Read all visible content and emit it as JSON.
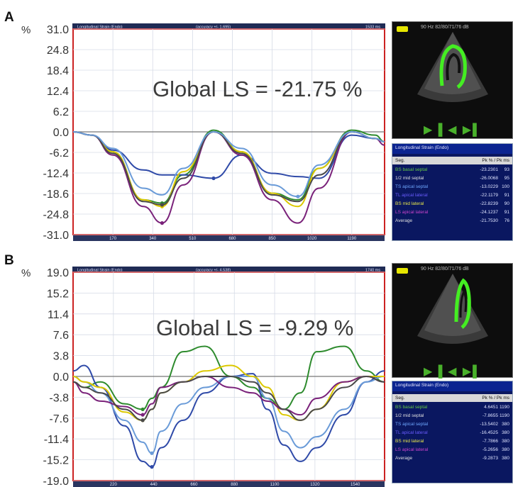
{
  "panels": [
    {
      "letter": "A",
      "title": "Global LS = -21.75 %",
      "header": {
        "left": "Longitudinal Strain (Endo)",
        "middle": "(accuracy +/- 1.695)",
        "right": "1533 ms"
      },
      "echo_text": "90 Hz   82/80/71/76 dB",
      "echo_controls": "▶ ▌◀ ▶▌",
      "table": {
        "title": "Longitudinal Strain (Endo)",
        "header": [
          "Seg.",
          "Pk % / Pk ms"
        ],
        "rows": [
          {
            "label": "BS basal septal",
            "value": "-23.2301",
            "extra": "93",
            "color": "#66cc44"
          },
          {
            "label": "1/2 mid septal",
            "value": "-26.0068",
            "extra": "95",
            "color": "#e0e0e0"
          },
          {
            "label": "TS apical septal",
            "value": "-13.0229",
            "extra": "100",
            "color": "#6fa8ff"
          },
          {
            "label": "TL apical lateral",
            "value": "-22.1179",
            "extra": "91",
            "color": "#6a5cff"
          },
          {
            "label": "BS mid lateral",
            "value": "-22.8239",
            "extra": "90",
            "color": "#e8e84a"
          },
          {
            "label": "LS apical lateral",
            "value": "-24.1237",
            "extra": "91",
            "color": "#cc44cc"
          },
          {
            "label": "Average",
            "value": "-21.7530",
            "extra": "76",
            "color": "#e0e0e0"
          }
        ]
      },
      "chart_data": {
        "type": "line",
        "title": "Global LS = -21.75 %",
        "ylabel": "%",
        "ylim": [
          -31.0,
          31.0
        ],
        "yticks": [
          "31.0",
          "24.8",
          "18.4",
          "12.4",
          "6.2",
          "0.0",
          "-6.2",
          "-12.4",
          "-18.6",
          "-24.8",
          "-31.0"
        ],
        "xlim": [
          0,
          1330
        ],
        "xtick_values": [
          170,
          340,
          510,
          680,
          850,
          1020,
          1190
        ],
        "xtick_labels": [
          "170",
          "340",
          "510",
          "680",
          "850",
          "1020",
          "1190"
        ],
        "x": [
          0,
          80,
          170,
          300,
          380,
          470,
          600,
          720,
          850,
          960,
          1050,
          1190,
          1290,
          1330
        ],
        "series": [
          {
            "color": "#2e8b2e",
            "values": [
              0,
              -1,
              -6,
              -20.5,
              -21.5,
              -13,
              0.5,
              -6,
              -18.5,
              -20.5,
              -11,
              0.5,
              -1,
              -3
            ]
          },
          {
            "color": "#2f4aa8",
            "values": [
              0,
              -1,
              -5.5,
              -11.5,
              -13,
              -13,
              -14,
              -7,
              -12.5,
              -13.5,
              -14,
              -1,
              -2,
              -3
            ]
          },
          {
            "color": "#dcc800",
            "values": [
              0,
              -1,
              -6,
              -20.5,
              -22.5,
              -12,
              0,
              -6,
              -18.5,
              -22.5,
              -11,
              0,
              -2,
              -3
            ]
          },
          {
            "color": "#7a227a",
            "values": [
              0,
              -1,
              -7,
              -22.5,
              -27.5,
              -16,
              0,
              -7,
              -20.5,
              -27.5,
              -17,
              0,
              -2,
              -4
            ]
          },
          {
            "color": "#4a4a4a",
            "values": [
              0,
              -1,
              -6.5,
              -21,
              -22,
              -14,
              0,
              -6.5,
              -19,
              -21,
              -13,
              0,
              -2,
              -3
            ]
          },
          {
            "color": "#6a9bd8",
            "values": [
              0,
              -1,
              -5,
              -17,
              -19,
              -11,
              0,
              -5,
              -16,
              -19.5,
              -10,
              0,
              -2,
              -3
            ]
          }
        ]
      }
    },
    {
      "letter": "B",
      "title": "Global LS = -9.29 %",
      "header": {
        "left": "Longitudinal Strain (Endo)",
        "middle": "(accuracy +/- 4.538)",
        "right": "1740 ms"
      },
      "echo_text": "90 Hz   82/80/71/76 dB",
      "echo_controls": "▶ ▌◀ ▶▌",
      "table": {
        "title": "Longitudinal Strain (Endo)",
        "header": [
          "Seg.",
          "Pk % / Pk ms"
        ],
        "rows": [
          {
            "label": "BS basal septal",
            "value": "4.6451",
            "extra": "1190",
            "color": "#66cc44"
          },
          {
            "label": "1/2 mid septal",
            "value": "-7.8655",
            "extra": "1190",
            "color": "#e0e0e0"
          },
          {
            "label": "TS apical septal",
            "value": "-13.5402",
            "extra": "380",
            "color": "#6fa8ff"
          },
          {
            "label": "TL apical lateral",
            "value": "-16.4525",
            "extra": "380",
            "color": "#6a5cff"
          },
          {
            "label": "BS mid lateral",
            "value": "-7.7866",
            "extra": "380",
            "color": "#e8e84a"
          },
          {
            "label": "LS apical lateral",
            "value": "-5.2656",
            "extra": "380",
            "color": "#cc44cc"
          },
          {
            "label": "Average",
            "value": "-9.2873",
            "extra": "380",
            "color": "#e0e0e0"
          }
        ]
      },
      "chart_data": {
        "type": "line",
        "title": "Global LS = -9.29 %",
        "ylabel": "%",
        "ylim": [
          -19.0,
          19.0
        ],
        "yticks": [
          "19.0",
          "15.2",
          "11.4",
          "7.6",
          "3.8",
          "0.0",
          "-3.8",
          "-7.6",
          "-11.4",
          "-15.2",
          "-19.0"
        ],
        "xlim": [
          0,
          1700
        ],
        "xtick_values": [
          220,
          440,
          660,
          880,
          1100,
          1320,
          1540
        ],
        "xtick_labels": [
          "220",
          "440",
          "660",
          "880",
          "1100",
          "1320",
          "1540"
        ],
        "x": [
          0,
          60,
          150,
          280,
          380,
          430,
          480,
          600,
          720,
          860,
          980,
          1060,
          1150,
          1240,
          1330,
          1480,
          1600,
          1700
        ],
        "series": [
          {
            "color": "#2e8b2e",
            "values": [
              -1,
              -2,
              -1,
              -5,
              -6,
              -4,
              -2,
              4.5,
              5.5,
              0,
              -2,
              -4,
              -6,
              -3,
              4.5,
              5.5,
              1,
              -1
            ]
          },
          {
            "color": "#2f4aa8",
            "values": [
              1,
              2,
              -2,
              -9,
              -15.5,
              -16.5,
              -13,
              -8,
              -3,
              0,
              0.5,
              -6,
              -12.5,
              -15.5,
              -13,
              -7,
              -1,
              1
            ]
          },
          {
            "color": "#6a9bd8",
            "values": [
              0,
              -1,
              -3,
              -8,
              -12,
              -14,
              -10,
              -5,
              -2,
              0,
              0,
              -4,
              -10,
              -13,
              -11,
              -6,
              -1,
              0
            ]
          },
          {
            "color": "#dcc800",
            "values": [
              0,
              -1,
              -2,
              -6.5,
              -8,
              -6,
              -3,
              -1,
              1,
              2,
              0,
              -2,
              -7,
              -8,
              -6,
              -1,
              0,
              0
            ]
          },
          {
            "color": "#7a227a",
            "values": [
              -1,
              -3,
              -4.5,
              -5.5,
              -7,
              -5,
              -2,
              -1,
              0,
              -2,
              -3,
              -4.5,
              -6,
              -7,
              -4,
              -1,
              0,
              -1
            ]
          },
          {
            "color": "#4a4a4a",
            "values": [
              -1,
              -2,
              -3,
              -6,
              -8,
              -6,
              -3,
              -1,
              0,
              0,
              -1,
              -3,
              -6,
              -8,
              -6,
              -2,
              0,
              -1
            ]
          }
        ]
      }
    }
  ]
}
